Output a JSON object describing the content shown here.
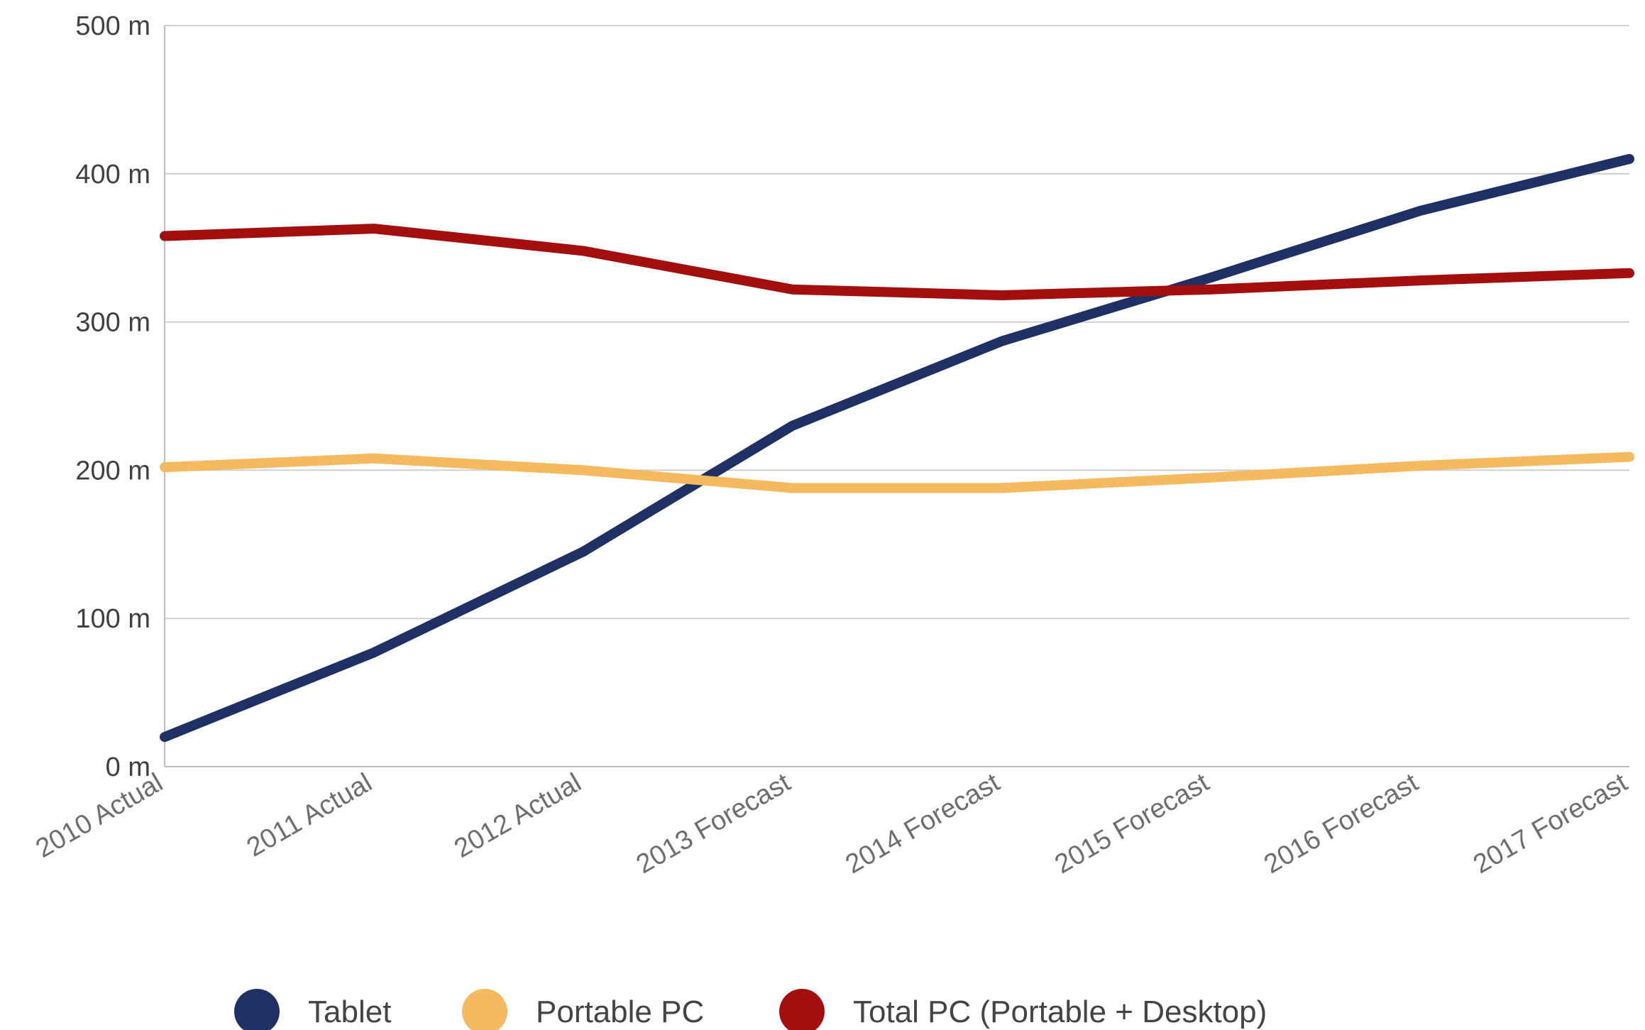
{
  "chart_data": {
    "type": "line",
    "title": "",
    "xlabel": "",
    "ylabel": "",
    "categories": [
      "2010 Actual",
      "2011 Actual",
      "2012 Actual",
      "2013 Forecast",
      "2014 Forecast",
      "2015 Forecast",
      "2016 Forecast",
      "2017 Forecast"
    ],
    "ylim": [
      0,
      500
    ],
    "y_ticks": [
      0,
      100,
      200,
      300,
      400,
      500
    ],
    "y_tick_labels": [
      "0 m",
      "100 m",
      "200 m",
      "300 m",
      "400 m",
      "500 m"
    ],
    "grid": true,
    "legend_position": "bottom",
    "series": [
      {
        "name": "Tablet",
        "color": "#1f3164",
        "values": [
          20,
          77,
          145,
          230,
          287,
          330,
          375,
          410
        ]
      },
      {
        "name": "Portable PC",
        "color": "#f5b95f",
        "values": [
          202,
          208,
          200,
          188,
          188,
          195,
          203,
          209
        ]
      },
      {
        "name": "Total PC (Portable + Desktop)",
        "color": "#a30f0f",
        "values": [
          358,
          363,
          348,
          322,
          318,
          322,
          328,
          333
        ]
      }
    ]
  }
}
